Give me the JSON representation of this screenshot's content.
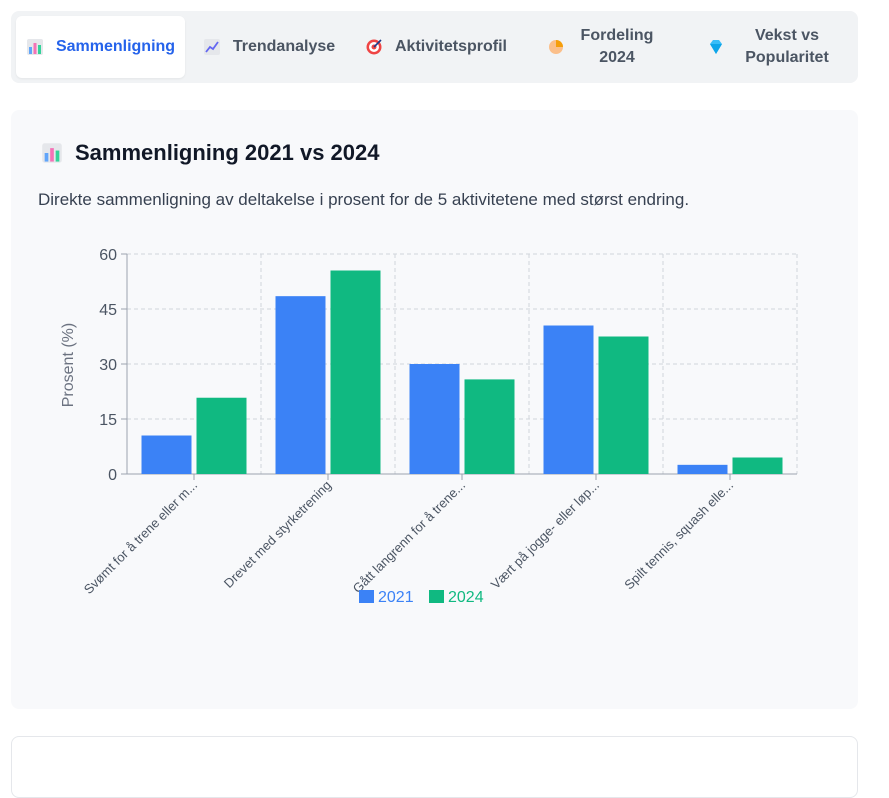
{
  "tabs": [
    {
      "label": "Sammenligning",
      "icon": "bar-chart-icon",
      "active": true
    },
    {
      "label": "Trendanalyse",
      "icon": "trend-chart-icon",
      "active": false
    },
    {
      "label": "Aktivitetsprofil",
      "icon": "target-icon",
      "active": false
    },
    {
      "label": "Fordeling 2024",
      "icon": "pie-icon",
      "active": false
    },
    {
      "label": "Vekst vs Popularitet",
      "icon": "diamond-icon",
      "active": false
    }
  ],
  "card": {
    "title": "Sammenligning 2021 vs 2024",
    "description": "Direkte sammenligning av deltakelse i prosent for de 5 aktivitetene med størst endring."
  },
  "chart_data": {
    "type": "bar",
    "categories": [
      "Svømt for å trene eller m...",
      "Drevet med styrketrening",
      "Gått langrenn for å trene...",
      "Vært på jogge- eller løp...",
      "Spilt tennis, squash elle..."
    ],
    "series": [
      {
        "name": "2021",
        "values": [
          10.5,
          48.5,
          30,
          40.5,
          2.5
        ],
        "color": "#3b82f6"
      },
      {
        "name": "2024",
        "values": [
          20.8,
          55.5,
          25.8,
          37.5,
          4.5
        ],
        "color": "#10b981"
      }
    ],
    "ylabel": "Prosent (%)",
    "ylim": [
      0,
      60
    ],
    "yticks": [
      "0",
      "15",
      "30",
      "45",
      "60"
    ],
    "grid": true,
    "legend_position": "bottom"
  }
}
